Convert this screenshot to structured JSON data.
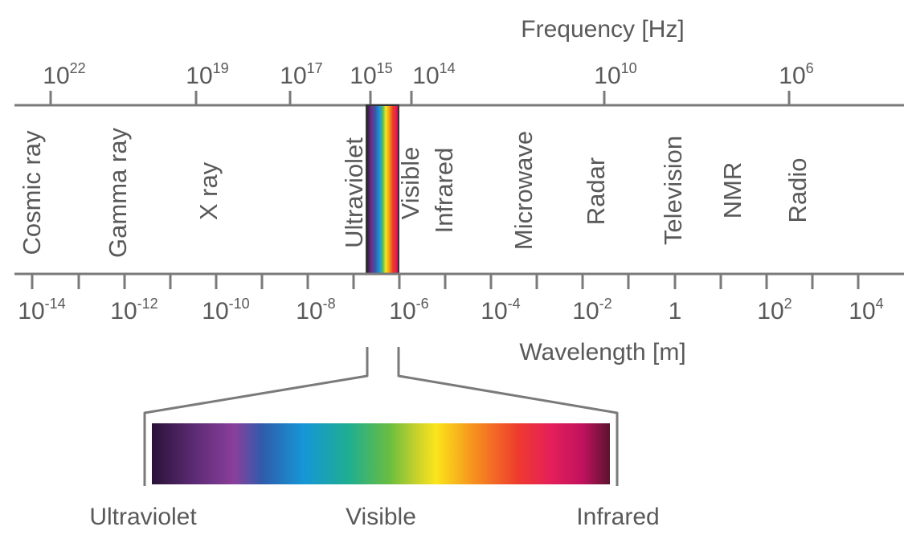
{
  "frequency_axis": {
    "title": "Frequency [Hz]",
    "ticks": [
      {
        "base": "10",
        "exp": "22"
      },
      {
        "base": "10",
        "exp": "19"
      },
      {
        "base": "10",
        "exp": "17"
      },
      {
        "base": "10",
        "exp": "15"
      },
      {
        "base": "10",
        "exp": "14"
      },
      {
        "base": "10",
        "exp": "10"
      },
      {
        "base": "10",
        "exp": "6"
      }
    ]
  },
  "wavelength_axis": {
    "title": "Wavelength [m]",
    "ticks": [
      {
        "base": "10",
        "exp": "-14"
      },
      {
        "base": "10",
        "exp": "-12"
      },
      {
        "base": "10",
        "exp": "-10"
      },
      {
        "base": "10",
        "exp": "-8"
      },
      {
        "base": "10",
        "exp": "-6"
      },
      {
        "base": "10",
        "exp": "-4"
      },
      {
        "base": "10",
        "exp": "-2"
      },
      {
        "base": "1",
        "exp": ""
      },
      {
        "base": "10",
        "exp": "2"
      },
      {
        "base": "10",
        "exp": "4"
      }
    ]
  },
  "bands": [
    "Cosmic ray",
    "Gamma ray",
    "X ray",
    "Ultraviolet",
    "Visible",
    "Infrared",
    "Microwave",
    "Radar",
    "Television",
    "NMR",
    "Radio"
  ],
  "zoom_labels": {
    "left": "Ultraviolet",
    "center": "Visible",
    "right": "Infrared"
  },
  "colors": {
    "axis": "#7a7a7a",
    "text": "#595959",
    "spectrum": [
      "#2a1238",
      "#5b2a73",
      "#8a3f9c",
      "#2f5cab",
      "#1596d6",
      "#1fae90",
      "#6bbd3e",
      "#cbd22a",
      "#fbe51b",
      "#f7931e",
      "#ee3a2f",
      "#e61f5a",
      "#c0125e",
      "#7a1a3e"
    ]
  }
}
